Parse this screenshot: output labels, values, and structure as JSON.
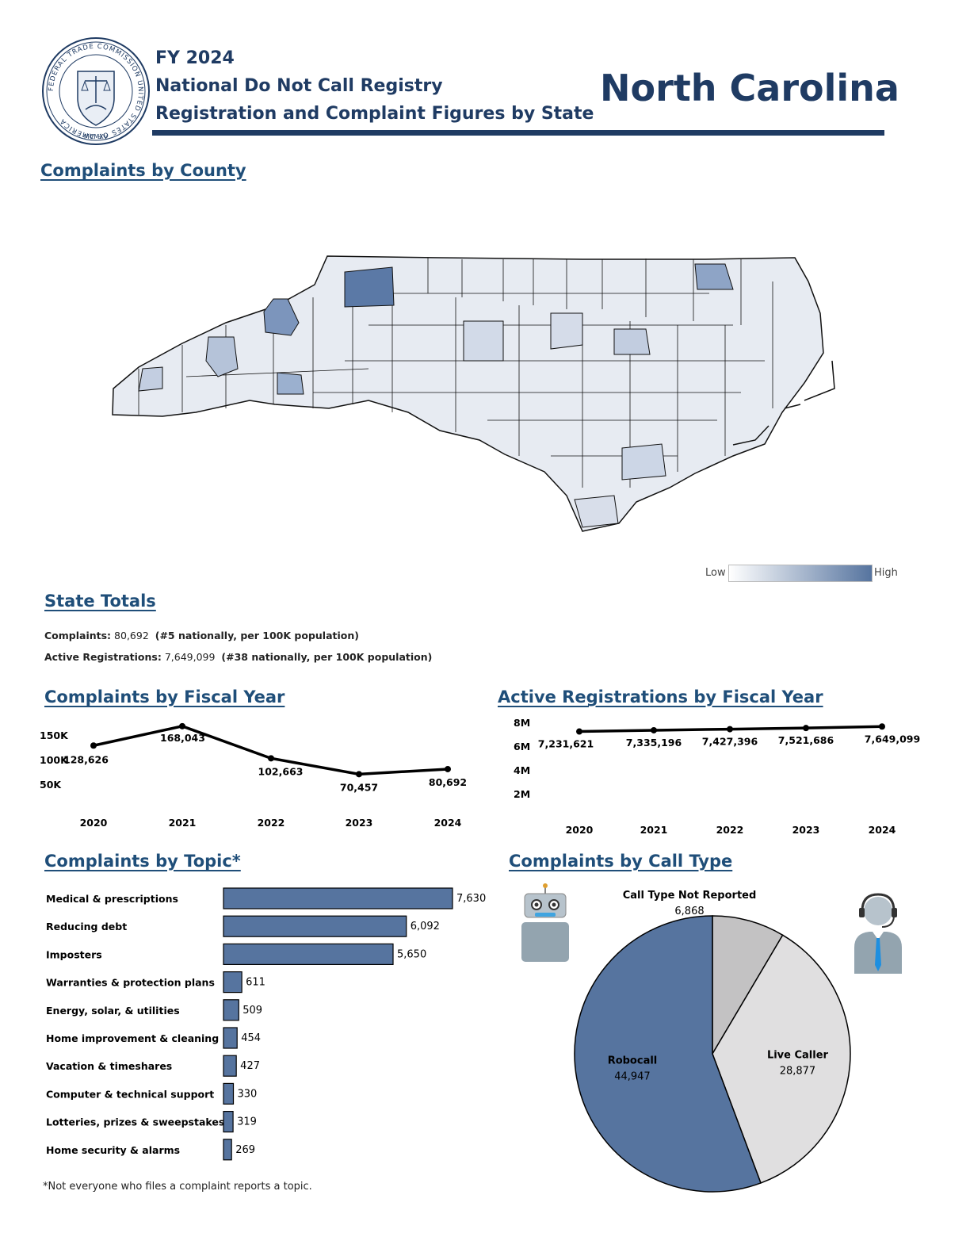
{
  "header": {
    "line1": "FY 2024",
    "line2": "National Do Not Call Registry",
    "line3": "Registration and Complaint Figures by State",
    "state": "North Carolina",
    "seal_text": "FEDERAL TRADE COMMISSION UNITED STATES OF AMERICA",
    "seal_year": "MCMXV"
  },
  "colors": {
    "navy": "#1f3b63",
    "bar": "#56749f",
    "robo": "#56749f",
    "live": "#e0dfe0",
    "notreported": "#c3c2c3"
  },
  "county_section": {
    "title": "Complaints by County",
    "legend_low": "Low",
    "legend_high": "High"
  },
  "totals": {
    "title": "State Totals",
    "complaints_label": "Complaints:",
    "complaints_value": "80,692",
    "complaints_rank": "(#5 nationally, per 100K population)",
    "registrations_label": "Active Registrations:",
    "registrations_value": "7,649,099",
    "registrations_rank": "(#38 nationally, per 100K population)"
  },
  "footnote": "*Not everyone who files a complaint reports a topic.",
  "chart_data": [
    {
      "type": "line",
      "title": "Complaints by Fiscal Year",
      "x": [
        "2020",
        "2021",
        "2022",
        "2023",
        "2024"
      ],
      "values": [
        128626,
        168043,
        102663,
        70457,
        80692
      ],
      "labels": [
        "128,626",
        "168,043",
        "102,663",
        "70,457",
        "80,692"
      ],
      "yticks": [
        "150K",
        "100K",
        "50K"
      ],
      "ytick_values": [
        150000,
        100000,
        50000
      ]
    },
    {
      "type": "line",
      "title": "Active Registrations by Fiscal Year",
      "x": [
        "2020",
        "2021",
        "2022",
        "2023",
        "2024"
      ],
      "values": [
        7231621,
        7335196,
        7427396,
        7521686,
        7649099
      ],
      "labels": [
        "7,231,621",
        "7,335,196",
        "7,427,396",
        "7,521,686",
        "7,649,099"
      ],
      "yticks": [
        "8M",
        "6M",
        "4M",
        "2M"
      ],
      "ytick_values": [
        8000000,
        6000000,
        4000000,
        2000000
      ]
    },
    {
      "type": "bar",
      "title": "Complaints by Topic*",
      "categories": [
        "Medical & prescriptions",
        "Reducing debt",
        "Imposters",
        "Warranties & protection plans",
        "Energy, solar, & utilities",
        "Home improvement & cleaning",
        "Vacation & timeshares",
        "Computer & technical support",
        "Lotteries, prizes & sweepstakes",
        "Home security & alarms"
      ],
      "values": [
        7630,
        6092,
        5650,
        611,
        509,
        454,
        427,
        330,
        319,
        269
      ],
      "labels": [
        "7,630",
        "6,092",
        "5,650",
        "611",
        "509",
        "454",
        "427",
        "330",
        "319",
        "269"
      ]
    },
    {
      "type": "pie",
      "title": "Complaints by Call Type",
      "categories": [
        "Call Type Not Reported",
        "Live Caller",
        "Robocall"
      ],
      "values": [
        6868,
        28877,
        44947
      ],
      "labels": [
        "6,868",
        "28,877",
        "44,947"
      ]
    }
  ]
}
